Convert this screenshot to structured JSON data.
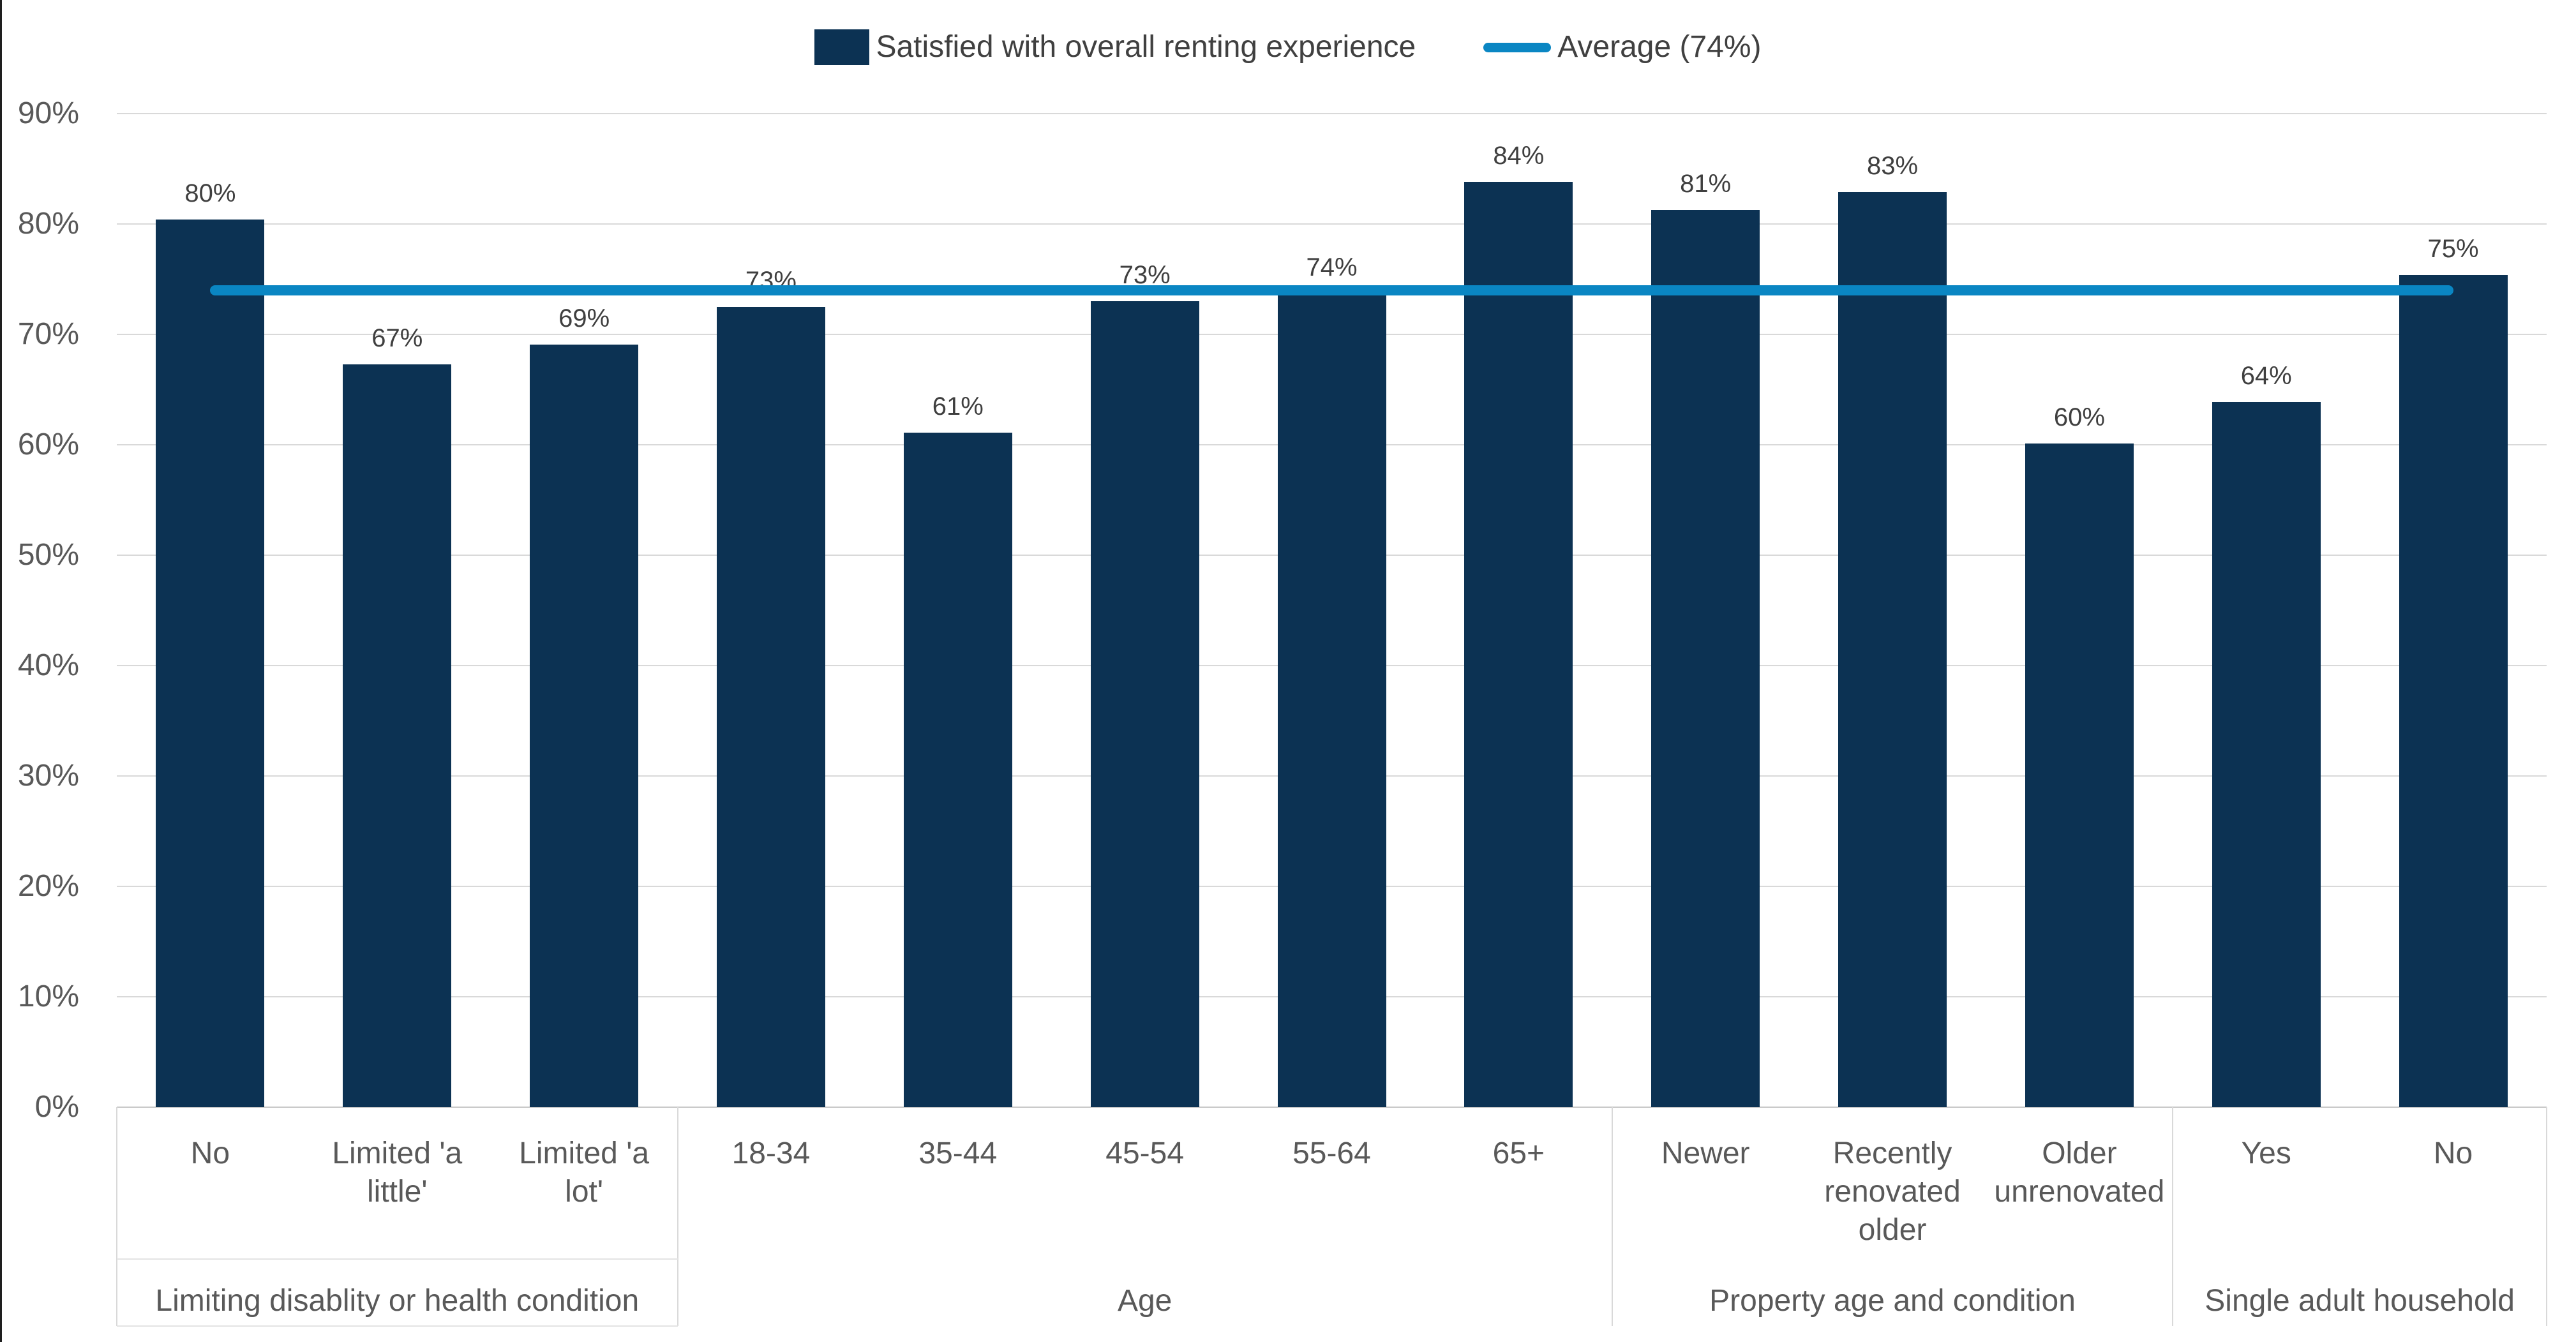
{
  "legend": {
    "bar_label": "Satisfied with overall renting experience",
    "line_label": "Average (74%)"
  },
  "colors": {
    "bar_navy": "#0C3253",
    "average_blue": "#0A86C3",
    "gridline": "#D9D9D9",
    "axis_line": "#C9C9C9",
    "divider": "#D9D9D9",
    "tick_text": "#595959",
    "data_label_text": "#3F3F3F",
    "legend_text": "#404040"
  },
  "chart_data": {
    "type": "bar",
    "title": "",
    "xlabel": "",
    "ylabel": "",
    "grid": true,
    "legend_position": "top-center",
    "series_name": "Satisfied with overall renting experience",
    "y_axis": {
      "min": 0,
      "max": 90,
      "tick_step": 10,
      "tick_labels": [
        "0%",
        "10%",
        "20%",
        "30%",
        "40%",
        "50%",
        "60%",
        "70%",
        "80%",
        "90%"
      ]
    },
    "average_line": {
      "label": "Average (74%)",
      "value": 74
    },
    "groups": [
      {
        "label": "Limiting disablity or health condition",
        "count": 3
      },
      {
        "label": "Age",
        "count": 5
      },
      {
        "label": "Property age and condition",
        "count": 3
      },
      {
        "label": "Single adult household",
        "count": 2
      }
    ],
    "points": [
      {
        "category": "No",
        "group": "Limiting disablity or health condition",
        "value": 80.4,
        "label": "80%"
      },
      {
        "category": "Limited 'a\nlittle'",
        "group": "Limiting disablity or health condition",
        "value": 67.3,
        "label": "67%"
      },
      {
        "category": "Limited 'a\nlot'",
        "group": "Limiting disablity or health condition",
        "value": 69.1,
        "label": "69%"
      },
      {
        "category": "18-34",
        "group": "Age",
        "value": 72.5,
        "label": "73%"
      },
      {
        "category": "35-44",
        "group": "Age",
        "value": 61.1,
        "label": "61%"
      },
      {
        "category": "45-54",
        "group": "Age",
        "value": 73.0,
        "label": "73%"
      },
      {
        "category": "55-64",
        "group": "Age",
        "value": 73.7,
        "label": "74%"
      },
      {
        "category": "65+",
        "group": "Age",
        "value": 83.8,
        "label": "84%"
      },
      {
        "category": "Newer",
        "group": "Property age and condition",
        "value": 81.3,
        "label": "81%"
      },
      {
        "category": "Recently\nrenovated\nolder",
        "group": "Property age and condition",
        "value": 82.9,
        "label": "83%"
      },
      {
        "category": "Older\nunrenovated",
        "group": "Property age and condition",
        "value": 60.1,
        "label": "60%"
      },
      {
        "category": "Yes",
        "group": "Single adult household",
        "value": 63.9,
        "label": "64%"
      },
      {
        "category": "No",
        "group": "Single adult household",
        "value": 75.4,
        "label": "75%"
      }
    ]
  }
}
